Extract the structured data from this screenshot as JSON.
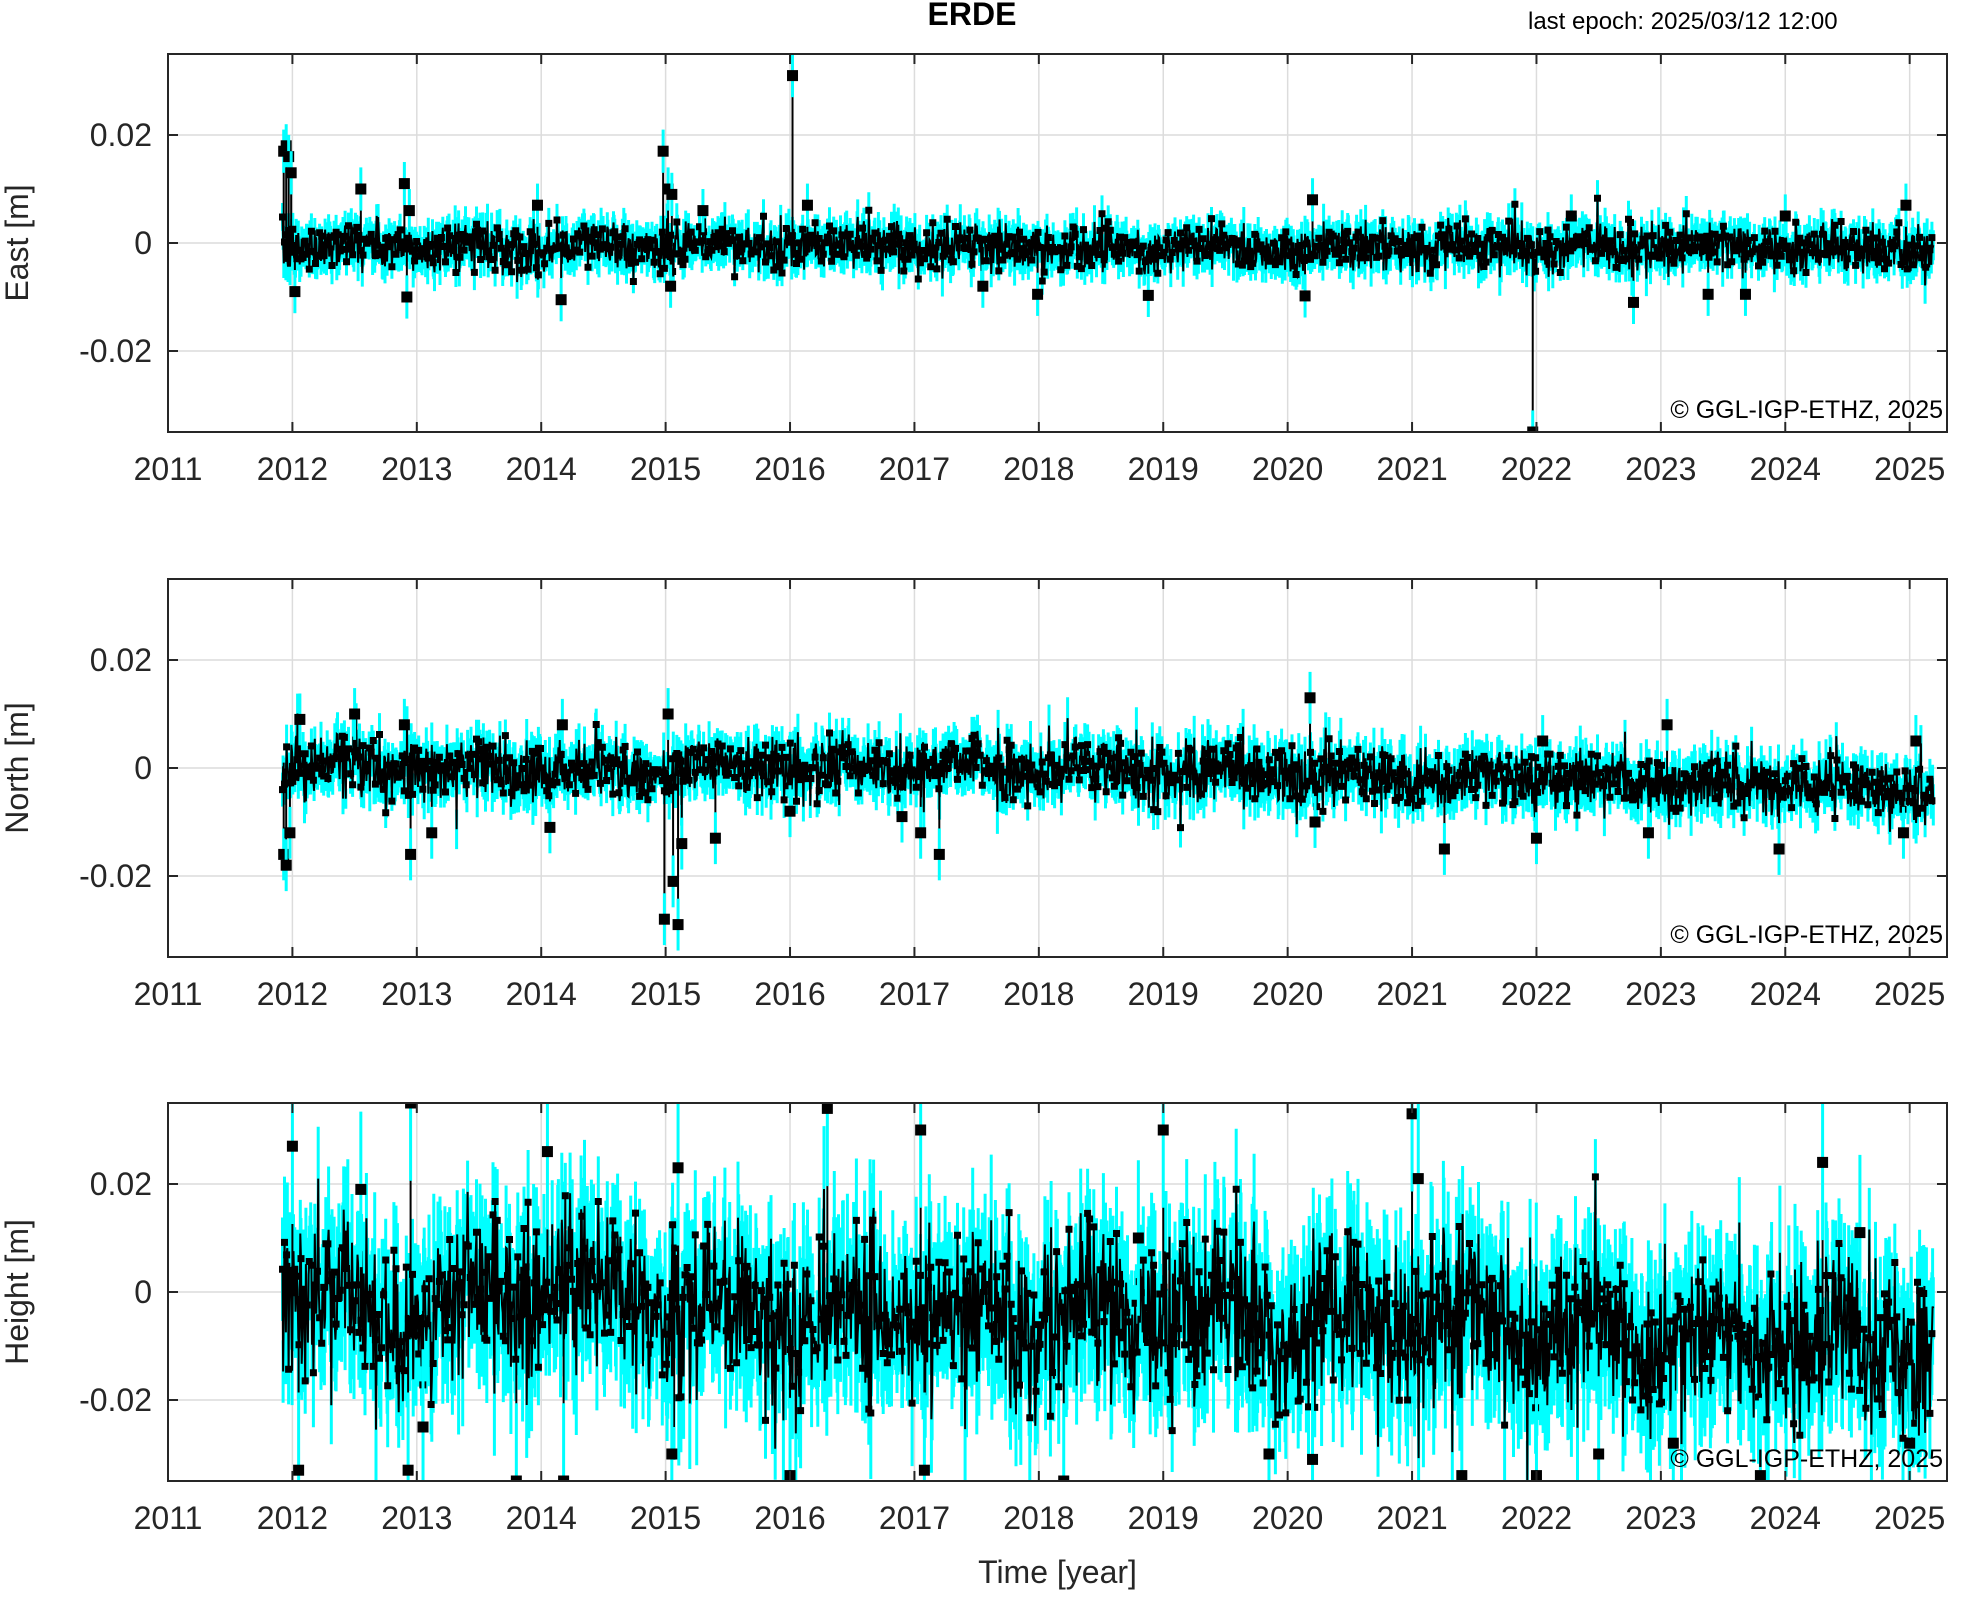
{
  "figure": {
    "title": "ERDE",
    "last_epoch": "last epoch: 2025/03/12 12:00"
  },
  "chart_data": [
    {
      "type": "scatter",
      "panel": "east",
      "ylabel": "East [m]",
      "xlabel": "",
      "copyright": "©  GGL-IGP-ETHZ, 2025",
      "xlim": [
        2011,
        2025.3
      ],
      "ylim": [
        -0.035,
        0.035
      ],
      "xticks": [
        "2011",
        "2012",
        "2013",
        "2014",
        "2015",
        "2016",
        "2017",
        "2018",
        "2019",
        "2020",
        "2021",
        "2022",
        "2023",
        "2024",
        "2025"
      ],
      "yticks": [
        "0.02",
        "0",
        "-0.02"
      ],
      "ytick_values": [
        0.02,
        0,
        -0.02
      ],
      "grid": true,
      "series_colors": {
        "error_bars": "#00ffff",
        "daily_solutions": "#000000"
      },
      "data_span": [
        2011.92,
        2025.19
      ],
      "noise_sigma": 0.0022,
      "error_sigma": 0.0025,
      "drift": [
        [
          2011.92,
          -0.0005
        ],
        [
          2025.19,
          -0.001
        ]
      ],
      "outliers": [
        [
          2011.93,
          0.017
        ],
        [
          2011.95,
          0.018
        ],
        [
          2011.97,
          0.016
        ],
        [
          2011.99,
          0.013
        ],
        [
          2012.02,
          -0.009
        ],
        [
          2012.55,
          0.01
        ],
        [
          2012.9,
          0.011
        ],
        [
          2012.92,
          -0.01
        ],
        [
          2012.94,
          0.006
        ],
        [
          2013.97,
          0.007
        ],
        [
          2014.16,
          -0.0105
        ],
        [
          2014.98,
          0.017
        ],
        [
          2015.04,
          -0.008
        ],
        [
          2015.02,
          0.01
        ],
        [
          2015.05,
          0.009
        ],
        [
          2015.3,
          0.006
        ],
        [
          2016.02,
          0.031
        ],
        [
          2016.14,
          0.007
        ],
        [
          2017.55,
          -0.008
        ],
        [
          2017.99,
          -0.0095
        ],
        [
          2018.88,
          -0.0097
        ],
        [
          2020.14,
          -0.0098
        ],
        [
          2020.2,
          0.008
        ],
        [
          2021.97,
          -0.035
        ],
        [
          2022.28,
          0.005
        ],
        [
          2022.78,
          -0.011
        ],
        [
          2023.38,
          -0.0095
        ],
        [
          2023.68,
          -0.0095
        ],
        [
          2024.97,
          0.007
        ],
        [
          2024.0,
          0.005
        ]
      ]
    },
    {
      "type": "scatter",
      "panel": "north",
      "ylabel": "North [m]",
      "xlabel": "",
      "copyright": "©  GGL-IGP-ETHZ, 2025",
      "xlim": [
        2011,
        2025.3
      ],
      "ylim": [
        -0.035,
        0.035
      ],
      "xticks": [
        "2011",
        "2012",
        "2013",
        "2014",
        "2015",
        "2016",
        "2017",
        "2018",
        "2019",
        "2020",
        "2021",
        "2022",
        "2023",
        "2024",
        "2025"
      ],
      "yticks": [
        "0.02",
        "0",
        "-0.02"
      ],
      "ytick_values": [
        0.02,
        0,
        -0.02
      ],
      "grid": true,
      "series_colors": {
        "error_bars": "#00ffff",
        "daily_solutions": "#000000"
      },
      "data_span": [
        2011.92,
        2025.19
      ],
      "noise_sigma": 0.0028,
      "error_sigma": 0.003,
      "drift": [
        [
          2011.92,
          0.001
        ],
        [
          2014.2,
          -0.001
        ],
        [
          2016.0,
          0.0005
        ],
        [
          2020.0,
          -0.001
        ],
        [
          2025.19,
          -0.004
        ]
      ],
      "outliers": [
        [
          2011.93,
          -0.016
        ],
        [
          2011.95,
          -0.018
        ],
        [
          2011.98,
          -0.012
        ],
        [
          2012.06,
          0.009
        ],
        [
          2012.5,
          0.01
        ],
        [
          2012.9,
          0.008
        ],
        [
          2012.95,
          -0.016
        ],
        [
          2013.12,
          -0.012
        ],
        [
          2014.07,
          -0.011
        ],
        [
          2014.17,
          0.008
        ],
        [
          2014.99,
          -0.028
        ],
        [
          2015.02,
          0.01
        ],
        [
          2015.06,
          -0.021
        ],
        [
          2015.1,
          -0.029
        ],
        [
          2015.13,
          -0.014
        ],
        [
          2015.4,
          -0.013
        ],
        [
          2016.0,
          -0.008
        ],
        [
          2016.9,
          -0.009
        ],
        [
          2017.05,
          -0.012
        ],
        [
          2017.2,
          -0.016
        ],
        [
          2020.18,
          0.013
        ],
        [
          2020.22,
          -0.01
        ],
        [
          2021.26,
          -0.015
        ],
        [
          2022.0,
          -0.013
        ],
        [
          2022.05,
          0.005
        ],
        [
          2022.9,
          -0.012
        ],
        [
          2023.05,
          0.008
        ],
        [
          2023.95,
          -0.015
        ],
        [
          2024.95,
          -0.012
        ],
        [
          2025.05,
          0.005
        ]
      ]
    },
    {
      "type": "scatter",
      "panel": "height",
      "ylabel": "Height [m]",
      "xlabel": "Time [year]",
      "copyright": "©  GGL-IGP-ETHZ, 2025",
      "xlim": [
        2011,
        2025.3
      ],
      "ylim": [
        -0.035,
        0.035
      ],
      "xticks": [
        "2011",
        "2012",
        "2013",
        "2014",
        "2015",
        "2016",
        "2017",
        "2018",
        "2019",
        "2020",
        "2021",
        "2022",
        "2023",
        "2024",
        "2025"
      ],
      "yticks": [
        "0.02",
        "0",
        "-0.02"
      ],
      "ytick_values": [
        0.02,
        0,
        -0.02
      ],
      "grid": true,
      "series_colors": {
        "error_bars": "#00ffff",
        "daily_solutions": "#000000"
      },
      "data_span": [
        2011.92,
        2025.19
      ],
      "noise_sigma": 0.0075,
      "error_sigma": 0.009,
      "drift": [
        [
          2011.92,
          0.0
        ],
        [
          2012.8,
          -0.005
        ],
        [
          2014.15,
          0.003
        ],
        [
          2014.5,
          -0.002
        ],
        [
          2016.0,
          -0.005
        ],
        [
          2019.0,
          -0.004
        ],
        [
          2022.0,
          -0.007
        ],
        [
          2025.19,
          -0.01
        ]
      ],
      "outliers": [
        [
          2012.0,
          0.027
        ],
        [
          2012.05,
          -0.033
        ],
        [
          2012.55,
          0.019
        ],
        [
          2012.93,
          -0.033
        ],
        [
          2012.95,
          0.035
        ],
        [
          2013.05,
          -0.025
        ],
        [
          2013.8,
          -0.035
        ],
        [
          2014.05,
          0.026
        ],
        [
          2014.18,
          -0.035
        ],
        [
          2015.1,
          0.023
        ],
        [
          2015.05,
          -0.03
        ],
        [
          2016.0,
          -0.034
        ],
        [
          2016.3,
          0.034
        ],
        [
          2017.05,
          0.03
        ],
        [
          2017.08,
          -0.033
        ],
        [
          2018.2,
          -0.035
        ],
        [
          2019.0,
          0.03
        ],
        [
          2019.85,
          -0.03
        ],
        [
          2020.2,
          -0.031
        ],
        [
          2021.0,
          0.033
        ],
        [
          2021.05,
          0.021
        ],
        [
          2021.4,
          -0.034
        ],
        [
          2022.0,
          -0.034
        ],
        [
          2022.5,
          -0.03
        ],
        [
          2023.1,
          -0.028
        ],
        [
          2023.8,
          -0.034
        ],
        [
          2024.3,
          0.024
        ],
        [
          2025.0,
          -0.028
        ],
        [
          2024.6,
          0.011
        ],
        [
          2018.8,
          0.01
        ]
      ]
    }
  ]
}
